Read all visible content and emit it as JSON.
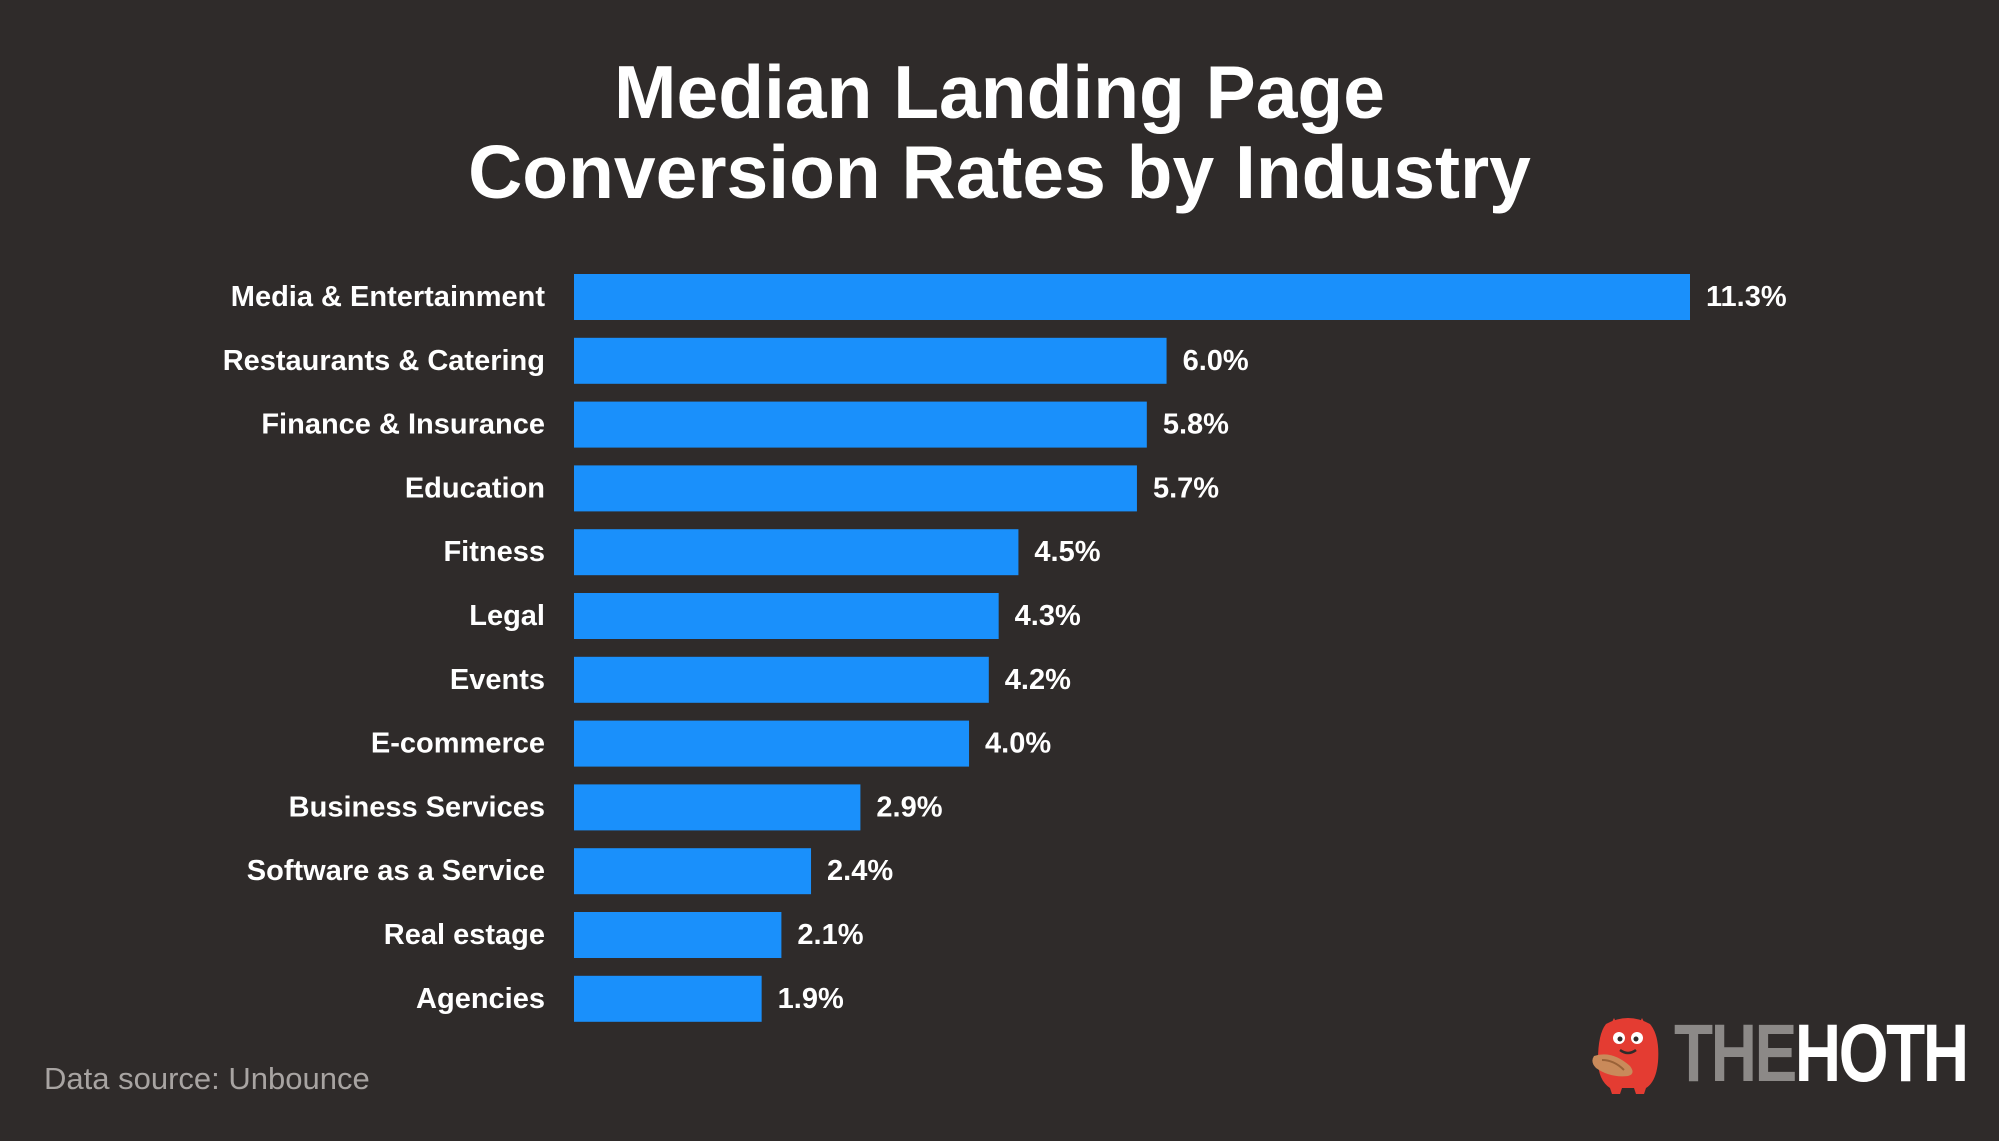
{
  "chart_data": {
    "type": "bar",
    "orientation": "horizontal",
    "title": [
      "Median Landing Page",
      "Conversion Rates by Industry"
    ],
    "categories": [
      "Media & Entertainment",
      "Restaurants & Catering",
      "Finance & Insurance",
      "Education",
      "Fitness",
      "Legal",
      "Events",
      "E-commerce",
      "Business Services",
      "Software as a Service",
      "Real estage",
      "Agencies"
    ],
    "values": [
      11.3,
      6.0,
      5.8,
      5.7,
      4.5,
      4.3,
      4.2,
      4.0,
      2.9,
      2.4,
      2.1,
      1.9
    ],
    "value_labels": [
      "11.3%",
      "6.0%",
      "5.8%",
      "5.7%",
      "4.5%",
      "4.3%",
      "4.2%",
      "4.0%",
      "2.9%",
      "2.4%",
      "2.1%",
      "1.9%"
    ],
    "xlim": [
      0,
      11.3
    ],
    "grid": false,
    "legend": "none",
    "bar_color": "#1a90fb",
    "background_color": "#2f2b2a",
    "text_color": "#ffffff"
  },
  "footer": {
    "source": "Data source: Unbounce"
  },
  "logo": {
    "text_part1": "THE",
    "text_part2": "HOTH",
    "icon": "hoth-mascot-icon",
    "mascot_color": "#e43c32"
  }
}
